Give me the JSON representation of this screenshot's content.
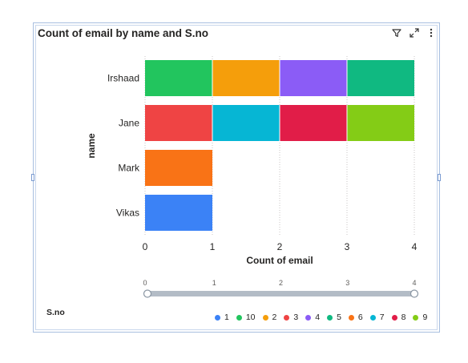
{
  "visual": {
    "title": "Count of email by name and S.no"
  },
  "toolbar": {
    "filter_icon": "filter-icon",
    "focus_icon": "focus-mode-icon",
    "more_icon": "more-options-icon"
  },
  "chart_data": {
    "type": "bar",
    "orientation": "horizontal",
    "stacked": true,
    "title": "Count of email by name and S.no",
    "xlabel": "Count of email",
    "ylabel": "name",
    "xlim": [
      0,
      4
    ],
    "x_ticks": [
      "0",
      "1",
      "2",
      "3",
      "4"
    ],
    "grid": "vertical dotted",
    "categories": [
      "Irshaad",
      "Jane",
      "Mark",
      "Vikas"
    ],
    "series": [
      {
        "name": "1",
        "color": "#3b82f6",
        "values": [
          0,
          0,
          0,
          1
        ]
      },
      {
        "name": "10",
        "color": "#22c55e",
        "values": [
          1,
          0,
          0,
          0
        ]
      },
      {
        "name": "2",
        "color": "#f59e0b",
        "values": [
          1,
          0,
          0,
          0
        ]
      },
      {
        "name": "3",
        "color": "#ef4444",
        "values": [
          0,
          1,
          0,
          0
        ]
      },
      {
        "name": "4",
        "color": "#8b5cf6",
        "values": [
          1,
          0,
          0,
          0
        ]
      },
      {
        "name": "5",
        "color": "#10b981",
        "values": [
          1,
          0,
          0,
          0
        ]
      },
      {
        "name": "6",
        "color": "#f97316",
        "values": [
          0,
          0,
          1,
          0
        ]
      },
      {
        "name": "7",
        "color": "#06b6d4",
        "values": [
          0,
          1,
          0,
          0
        ]
      },
      {
        "name": "8",
        "color": "#e11d48",
        "values": [
          0,
          1,
          0,
          0
        ]
      },
      {
        "name": "9",
        "color": "#84cc16",
        "values": [
          0,
          1,
          0,
          0
        ]
      }
    ],
    "stack_order": {
      "Irshaad": [
        "10",
        "2",
        "4",
        "5"
      ],
      "Jane": [
        "3",
        "7",
        "8",
        "9"
      ],
      "Mark": [
        "6"
      ],
      "Vikas": [
        "1"
      ]
    },
    "legend": {
      "title": "S.no",
      "position": "bottom-right"
    },
    "zoom_slider": {
      "min": 0,
      "max": 4,
      "range": [
        0,
        4
      ],
      "ticks": [
        "0",
        "1",
        "2",
        "3",
        "4"
      ]
    }
  }
}
